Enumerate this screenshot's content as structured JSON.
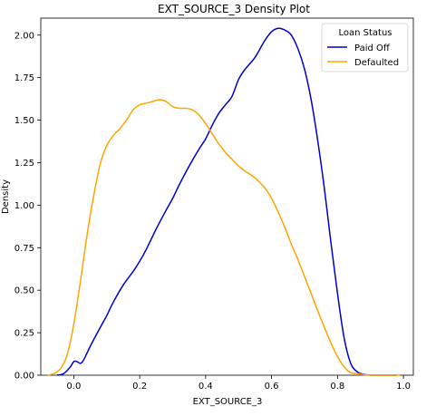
{
  "chart_data": {
    "type": "line",
    "title": "EXT_SOURCE_3 Density Plot",
    "xlabel": "EXT_SOURCE_3",
    "ylabel": "Density",
    "xlim": [
      -0.1,
      1.03
    ],
    "ylim": [
      0,
      2.1
    ],
    "x_ticks": [
      0.0,
      0.2,
      0.4,
      0.6,
      0.8,
      1.0
    ],
    "x_tick_labels": [
      "0.0",
      "0.2",
      "0.4",
      "0.6",
      "0.8",
      "1.0"
    ],
    "y_ticks": [
      0.0,
      0.25,
      0.5,
      0.75,
      1.0,
      1.25,
      1.5,
      1.75,
      2.0
    ],
    "y_tick_labels": [
      "0.00",
      "0.25",
      "0.50",
      "0.75",
      "1.00",
      "1.25",
      "1.50",
      "1.75",
      "2.00"
    ],
    "grid": false,
    "legend": {
      "title": "Loan Status",
      "placement": "top-right"
    },
    "series": [
      {
        "name": "Paid Off",
        "color": "#0000cc",
        "x": [
          -0.05,
          -0.03,
          -0.01,
          0.0,
          0.01,
          0.02,
          0.03,
          0.05,
          0.08,
          0.1,
          0.12,
          0.15,
          0.18,
          0.2,
          0.22,
          0.25,
          0.28,
          0.3,
          0.32,
          0.35,
          0.38,
          0.4,
          0.42,
          0.44,
          0.46,
          0.48,
          0.5,
          0.52,
          0.55,
          0.58,
          0.6,
          0.62,
          0.64,
          0.66,
          0.68,
          0.7,
          0.72,
          0.74,
          0.76,
          0.78,
          0.8,
          0.82,
          0.84,
          0.86,
          0.88,
          0.9,
          0.92,
          0.95,
          0.98
        ],
        "values": [
          0.0,
          0.01,
          0.05,
          0.08,
          0.08,
          0.07,
          0.09,
          0.17,
          0.28,
          0.35,
          0.43,
          0.53,
          0.61,
          0.67,
          0.74,
          0.86,
          0.97,
          1.04,
          1.12,
          1.23,
          1.33,
          1.39,
          1.47,
          1.54,
          1.59,
          1.64,
          1.74,
          1.8,
          1.87,
          1.97,
          2.02,
          2.04,
          2.03,
          2.0,
          1.92,
          1.8,
          1.62,
          1.38,
          1.1,
          0.78,
          0.48,
          0.22,
          0.07,
          0.02,
          0.005,
          0.0,
          0.0,
          0.0,
          0.0
        ]
      },
      {
        "name": "Defaulted",
        "color": "#ffa500",
        "x": [
          -0.08,
          -0.06,
          -0.04,
          -0.02,
          0.0,
          0.02,
          0.04,
          0.06,
          0.08,
          0.1,
          0.12,
          0.14,
          0.16,
          0.18,
          0.2,
          0.22,
          0.24,
          0.26,
          0.28,
          0.3,
          0.32,
          0.34,
          0.36,
          0.38,
          0.4,
          0.42,
          0.44,
          0.46,
          0.48,
          0.5,
          0.52,
          0.55,
          0.58,
          0.6,
          0.62,
          0.64,
          0.66,
          0.68,
          0.7,
          0.72,
          0.75,
          0.78,
          0.8,
          0.82,
          0.84,
          0.86,
          0.88,
          0.9,
          0.93,
          0.96,
          0.99
        ],
        "values": [
          0.0,
          0.01,
          0.04,
          0.12,
          0.3,
          0.55,
          0.82,
          1.05,
          1.24,
          1.35,
          1.41,
          1.45,
          1.5,
          1.56,
          1.59,
          1.6,
          1.61,
          1.62,
          1.61,
          1.58,
          1.57,
          1.57,
          1.56,
          1.53,
          1.48,
          1.42,
          1.36,
          1.31,
          1.27,
          1.23,
          1.2,
          1.16,
          1.1,
          1.04,
          0.96,
          0.87,
          0.77,
          0.68,
          0.58,
          0.48,
          0.33,
          0.19,
          0.11,
          0.05,
          0.015,
          0.01,
          0.003,
          0.0,
          0.0,
          0.0,
          0.0
        ]
      }
    ]
  }
}
